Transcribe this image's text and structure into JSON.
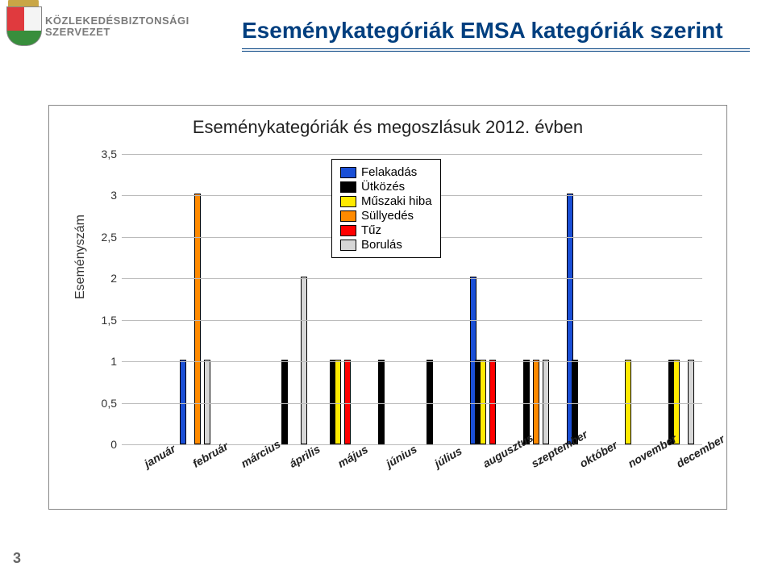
{
  "org": {
    "line1": "KÖZLEKEDÉSBIZTONSÁGI",
    "line2": "SZERVEZET"
  },
  "page_title": "Eseménykategóriák EMSA kategóriák szerint",
  "page_number": "3",
  "chart": {
    "type": "bar",
    "title": "Eseménykategóriák és megoszlásuk 2012. évben",
    "ylabel": "Eseményszám",
    "ylim_max": 3.5,
    "ytick_step": 0.5,
    "yticks": [
      "0",
      "0,5",
      "1",
      "1,5",
      "2",
      "2,5",
      "3",
      "3,5"
    ],
    "categories": [
      "január",
      "február",
      "március",
      "április",
      "május",
      "június",
      "július",
      "augusztus",
      "szeptember",
      "október",
      "november",
      "december"
    ],
    "series": [
      {
        "name": "Felakadás",
        "color": "#1a4fd6",
        "values": [
          0,
          1,
          0,
          0,
          0,
          0,
          0,
          2,
          0,
          3,
          0,
          0
        ]
      },
      {
        "name": "Ütközés",
        "color": "#000000",
        "values": [
          0,
          0,
          0,
          1,
          1,
          1,
          1,
          1,
          1,
          1,
          0,
          1
        ]
      },
      {
        "name": "Műszaki hiba",
        "color": "#ffea00",
        "values": [
          0,
          0,
          0,
          0,
          1,
          0,
          0,
          1,
          0,
          0,
          1,
          1
        ]
      },
      {
        "name": "Süllyedés",
        "color": "#ff8a00",
        "values": [
          0,
          3,
          0,
          0,
          0,
          0,
          0,
          0,
          1,
          0,
          0,
          0
        ]
      },
      {
        "name": "Tűz",
        "color": "#ff0000",
        "values": [
          0,
          0,
          0,
          0,
          1,
          0,
          0,
          1,
          0,
          0,
          0,
          0
        ]
      },
      {
        "name": "Borulás",
        "color": "#d6d6d6",
        "values": [
          0,
          1,
          0,
          2,
          0,
          0,
          0,
          0,
          1,
          0,
          0,
          1
        ]
      }
    ],
    "background_color": "#ffffff",
    "grid_color": "#bbbbbb",
    "bar_border": "#000000",
    "bar_group_width": 0.6,
    "title_fontsize": 22,
    "label_fontsize": 16,
    "tick_fontsize": 14
  }
}
